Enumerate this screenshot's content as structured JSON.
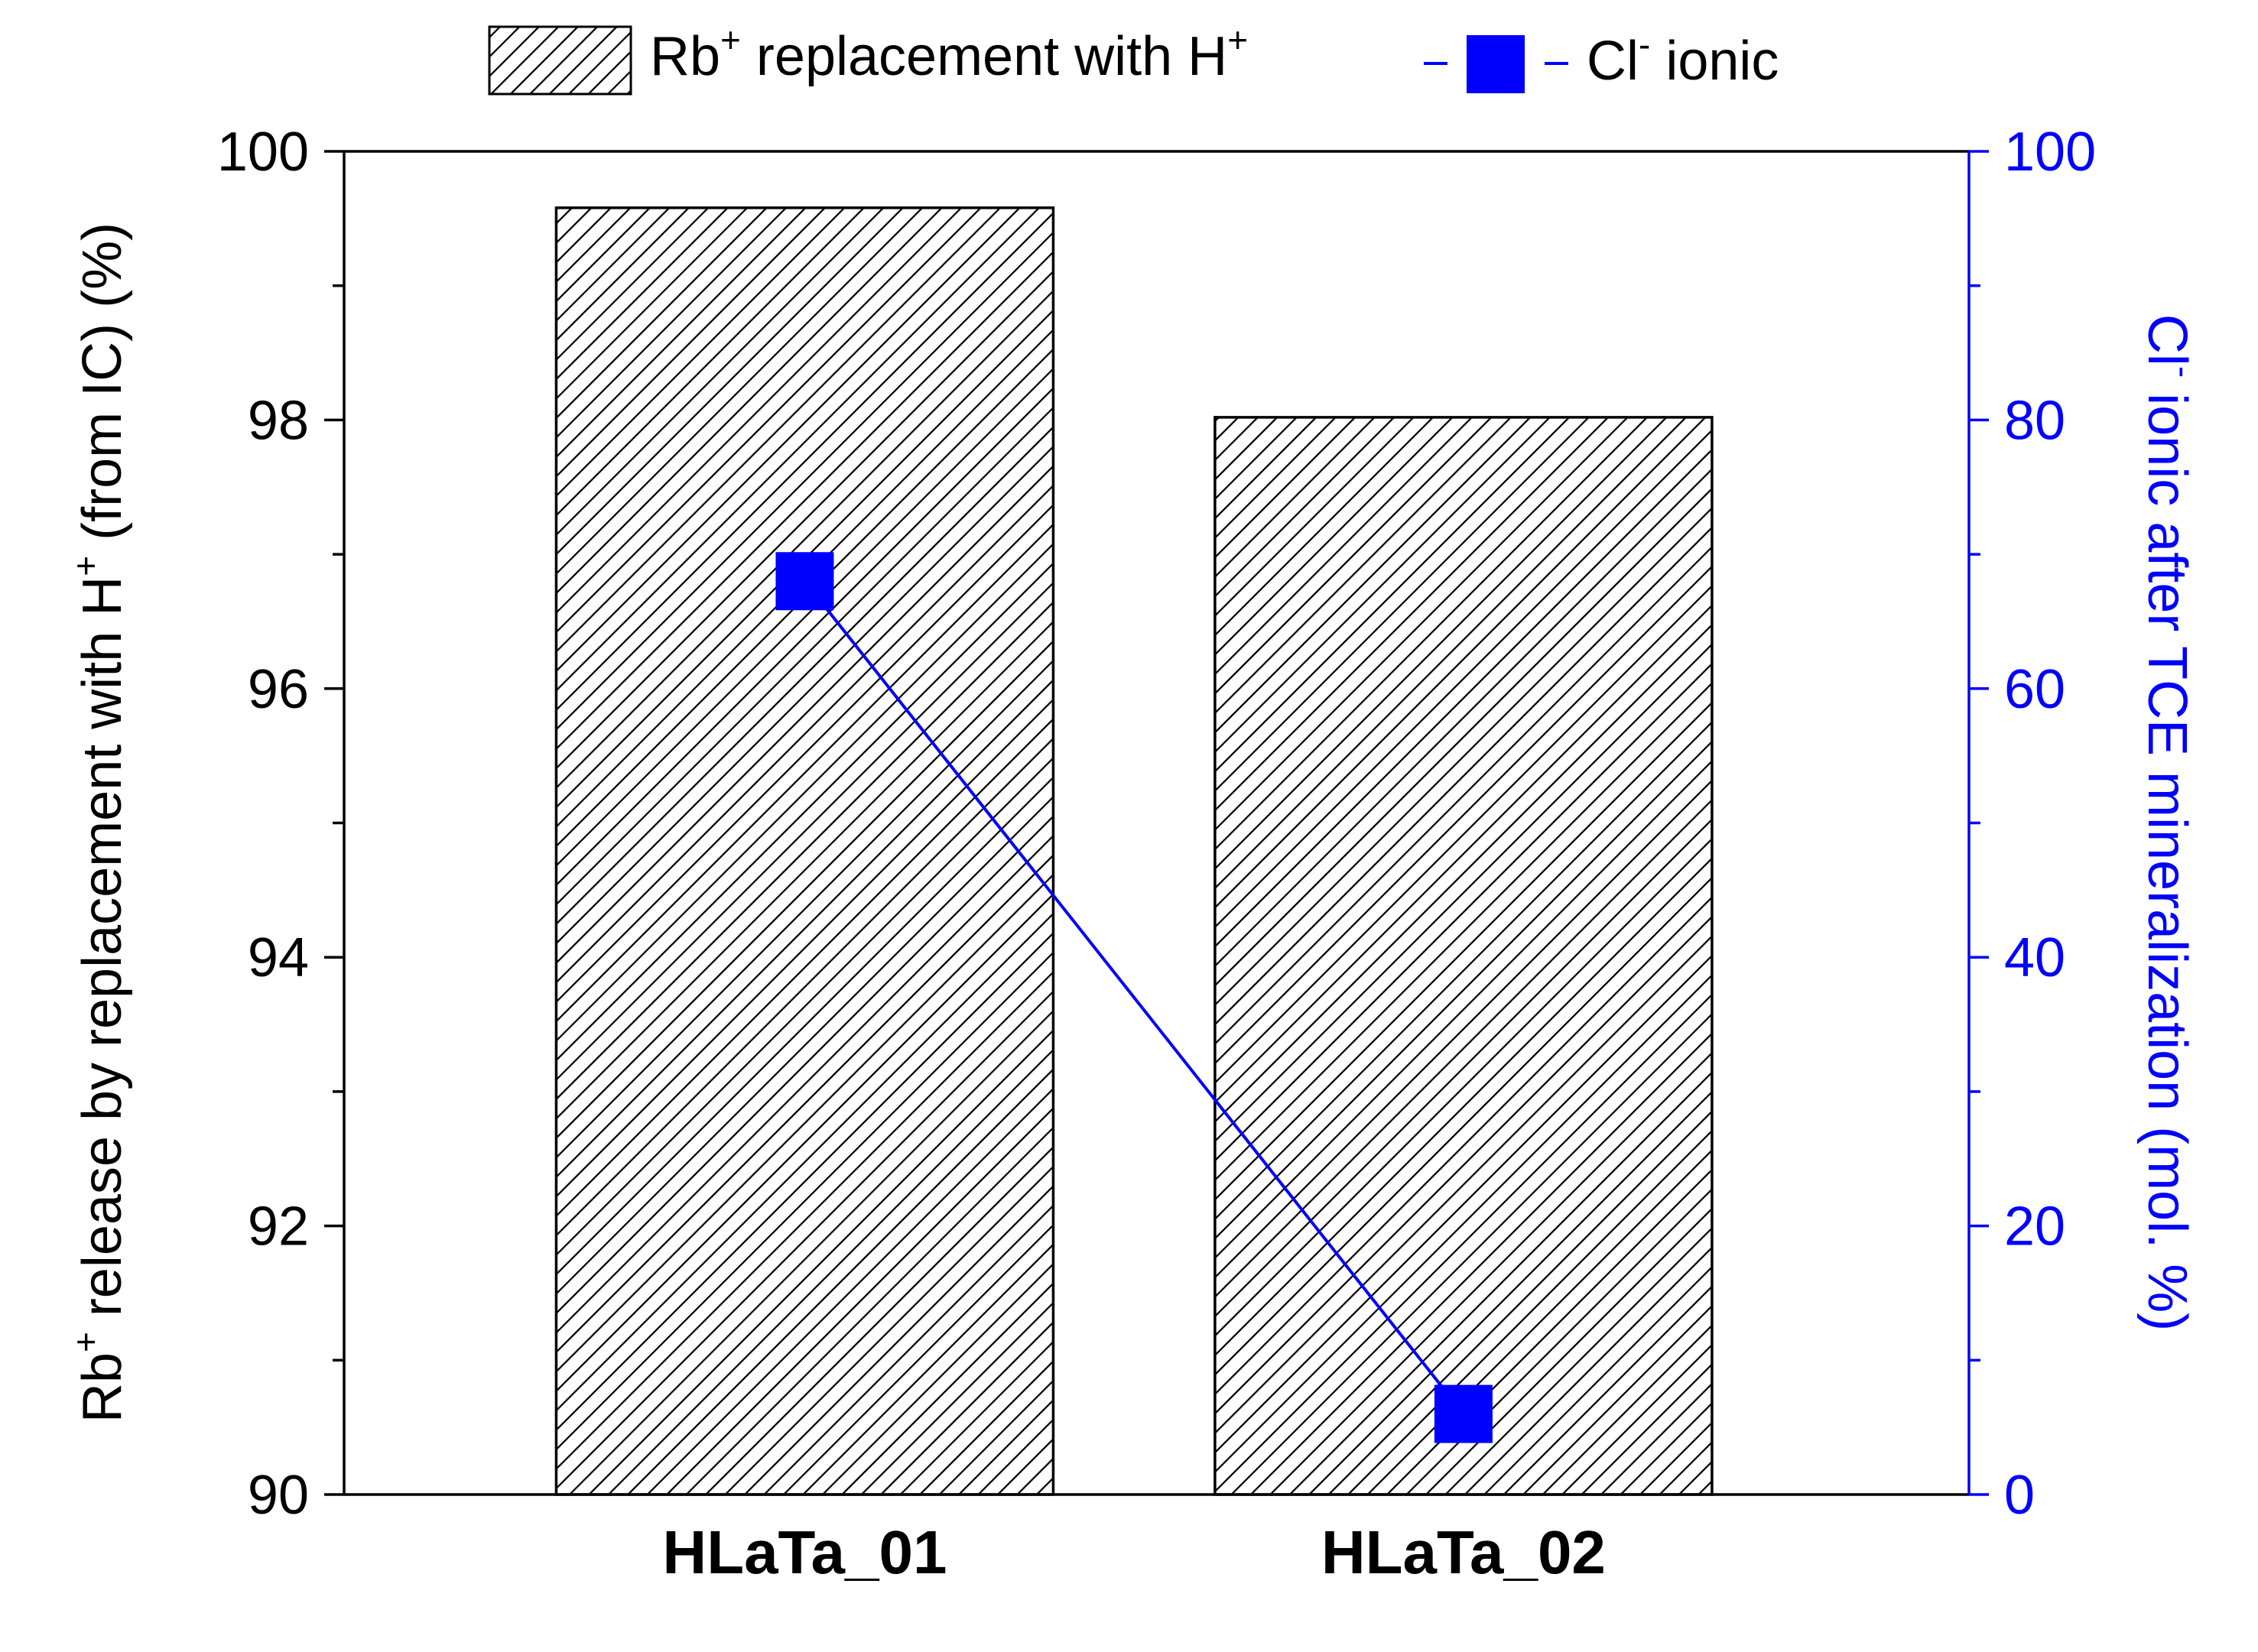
{
  "chart_data": {
    "type": "bar+line",
    "categories": [
      "HLaTa_01",
      "HLaTa_02"
    ],
    "series": [
      {
        "name": "Rb+ replacement with H+",
        "kind": "bar",
        "axis": "left",
        "values": [
          99.58,
          98.02
        ],
        "pattern": "diagonal-hatch",
        "color": "#000000"
      },
      {
        "name": "Cl- ionic",
        "kind": "line",
        "axis": "right",
        "values": [
          68.0,
          6.0
        ],
        "marker": "square",
        "color": "#0000ff"
      }
    ],
    "legend": {
      "placement": "top",
      "items": [
        {
          "base": "Rb",
          "sup": "+",
          "rest": " replacement with H",
          "sup2": "+"
        },
        {
          "base": "Cl",
          "sup": "-",
          "rest": " ionic",
          "sup2": ""
        }
      ]
    },
    "left_axis": {
      "label": {
        "pre": "Rb",
        "sup": "+",
        "mid": " release by replacement with H",
        "sup2": "+",
        "post": " (from IC) (%)"
      },
      "range": [
        90,
        100
      ],
      "ticks": [
        "90",
        "92",
        "94",
        "96",
        "98",
        "100"
      ],
      "minor_step": 1,
      "color": "#000000"
    },
    "right_axis": {
      "label": {
        "pre": "Cl",
        "sup": "-",
        "post": " ionic after TCE mineralization (mol. %)"
      },
      "range": [
        0,
        100
      ],
      "ticks": [
        "0",
        "20",
        "40",
        "60",
        "80",
        "100"
      ],
      "minor_step": 10,
      "color": "#0000ff"
    }
  }
}
